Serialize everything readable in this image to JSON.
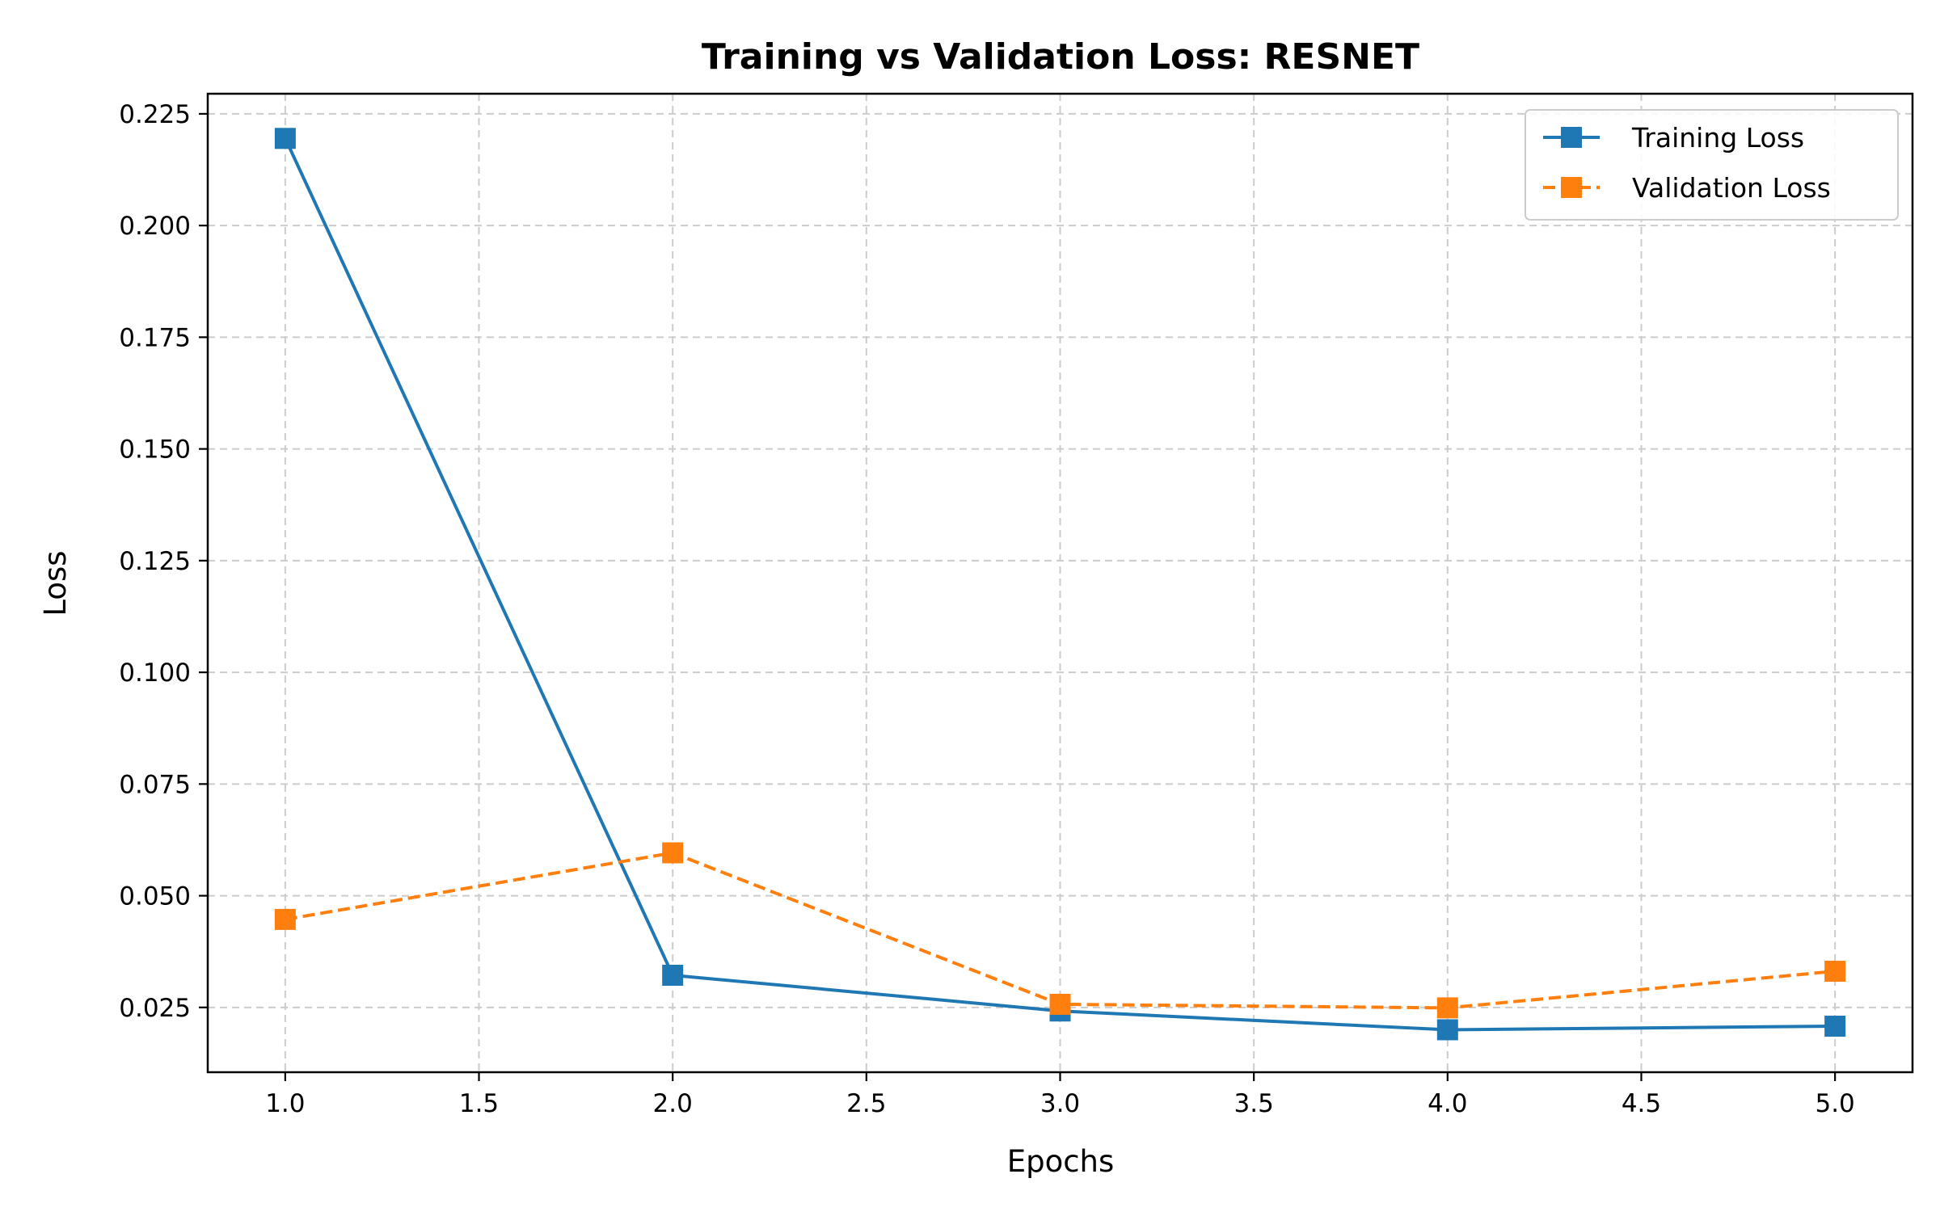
{
  "chart_data": {
    "type": "line",
    "title": "Training vs Validation Loss: RESNET",
    "xlabel": "Epochs",
    "ylabel": "Loss",
    "xlim": [
      0.8,
      5.2
    ],
    "ylim": [
      0.0105,
      0.2295
    ],
    "x": [
      1.0,
      2.0,
      3.0,
      4.0,
      5.0
    ],
    "x_ticks": [
      1.0,
      1.5,
      2.0,
      2.5,
      3.0,
      3.5,
      4.0,
      4.5,
      5.0
    ],
    "y_ticks": [
      0.025,
      0.05,
      0.075,
      0.1,
      0.125,
      0.15,
      0.175,
      0.2,
      0.225
    ],
    "x_tick_labels": [
      "1.0",
      "1.5",
      "2.0",
      "2.5",
      "3.0",
      "3.5",
      "4.0",
      "4.5",
      "5.0"
    ],
    "y_tick_labels": [
      "0.025",
      "0.050",
      "0.075",
      "0.100",
      "0.125",
      "0.150",
      "0.175",
      "0.200",
      "0.225"
    ],
    "grid": true,
    "legend_position": "top-right",
    "series": [
      {
        "name": "Training Loss",
        "values": [
          0.2195,
          0.0322,
          0.0242,
          0.02,
          0.0208
        ],
        "color": "#1f77b4",
        "line_style": "solid",
        "marker": "square"
      },
      {
        "name": "Validation Loss",
        "values": [
          0.0447,
          0.0596,
          0.0257,
          0.0249,
          0.0331
        ],
        "color": "#ff7f0e",
        "line_style": "dashed",
        "marker": "square"
      }
    ]
  }
}
